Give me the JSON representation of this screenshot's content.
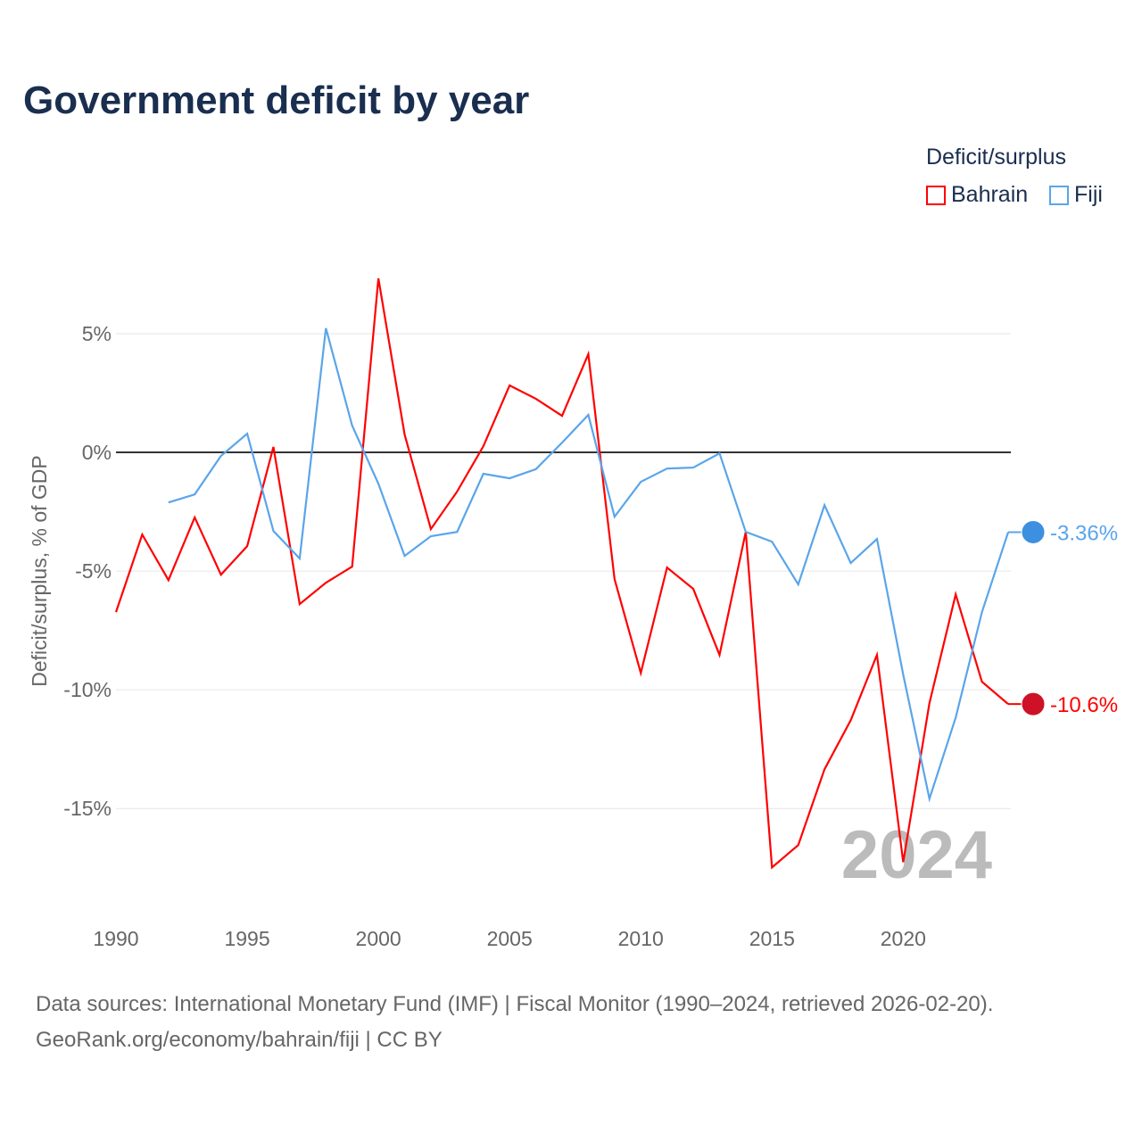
{
  "title": "Government deficit by year",
  "legend": {
    "title": "Deficit/surplus",
    "items": [
      {
        "name": "Bahrain",
        "color": "#ff0000"
      },
      {
        "name": "Fiji",
        "color": "#5aa5ea"
      }
    ]
  },
  "source_line1": "Data sources: International Monetary Fund (IMF) | Fiscal Monitor (1990–2024, retrieved 2026-02-20).",
  "source_line2": "GeoRank.org/economy/bahrain/fiji | CC BY",
  "chart_data": {
    "type": "line",
    "title": "Government deficit by year",
    "xlabel": "",
    "ylabel": "Deficit/surplus, % of GDP",
    "xlim": [
      1990,
      2024
    ],
    "ylim": [
      -18.9,
      9.66
    ],
    "xticks": [
      1990,
      1995,
      2000,
      2005,
      2010,
      2015,
      2020
    ],
    "xtick_labels": [
      "1990",
      "1995",
      "2000",
      "2005",
      "2010",
      "2015",
      "2020"
    ],
    "yticks": [
      5,
      0,
      -5,
      -10,
      -15
    ],
    "ytick_labels": [
      "5%",
      "0%",
      "-5%",
      "-10%",
      "-15%"
    ],
    "year_annotation": "2024",
    "series": [
      {
        "name": "Bahrain",
        "color": "#ff0000",
        "end_label": "-10.6%",
        "x": [
          1990,
          1991,
          1992,
          1993,
          1994,
          1995,
          1996,
          1997,
          1998,
          1999,
          2000,
          2001,
          2002,
          2003,
          2004,
          2005,
          2006,
          2007,
          2008,
          2009,
          2010,
          2011,
          2012,
          2013,
          2014,
          2015,
          2016,
          2017,
          2018,
          2019,
          2020,
          2021,
          2022,
          2023,
          2024
        ],
        "values": [
          -6.73,
          -3.46,
          -5.38,
          -2.74,
          -5.15,
          -3.95,
          0.23,
          -6.39,
          -5.49,
          -4.81,
          7.33,
          0.75,
          -3.23,
          -1.65,
          0.26,
          2.82,
          2.26,
          1.54,
          4.14,
          -5.34,
          -9.29,
          -4.85,
          -5.75,
          -8.53,
          -3.35,
          -17.48,
          -16.54,
          -13.35,
          -11.28,
          -8.53,
          -17.26,
          -10.56,
          -5.98,
          -9.66,
          -10.6
        ]
      },
      {
        "name": "Fiji",
        "color": "#5aa5ea",
        "end_label": "-3.36%",
        "x": [
          1992,
          1993,
          1994,
          1995,
          1996,
          1997,
          1998,
          1999,
          2000,
          2001,
          2002,
          2003,
          2004,
          2005,
          2006,
          2007,
          2008,
          2009,
          2010,
          2011,
          2012,
          2013,
          2014,
          2015,
          2016,
          2017,
          2018,
          2019,
          2020,
          2021,
          2022,
          2023,
          2024
        ],
        "values": [
          -2.11,
          -1.77,
          -0.15,
          0.79,
          -3.31,
          -4.47,
          5.23,
          1.13,
          -1.32,
          -4.36,
          -3.53,
          -3.35,
          -0.9,
          -1.09,
          -0.71,
          0.41,
          1.58,
          -2.71,
          -1.24,
          -0.68,
          -0.64,
          -0.04,
          -3.35,
          -3.76,
          -5.56,
          -2.22,
          -4.66,
          -3.65,
          -9.36,
          -14.59,
          -11.17,
          -6.73,
          -3.36
        ]
      }
    ]
  }
}
